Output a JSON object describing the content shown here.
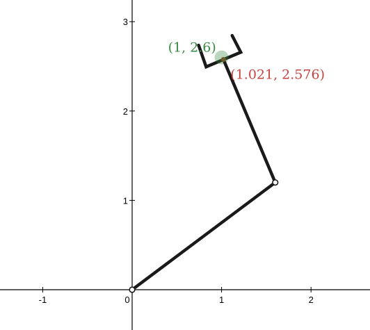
{
  "axes": {
    "x_ticks": [
      {
        "value": -1,
        "label": "-1"
      },
      {
        "value": 1,
        "label": "1"
      },
      {
        "value": 2,
        "label": "2"
      }
    ],
    "y_ticks": [
      {
        "value": 1,
        "label": "1"
      },
      {
        "value": 2,
        "label": "2"
      },
      {
        "value": 3,
        "label": "3"
      }
    ],
    "origin_label": "0",
    "axis_color": "#000000"
  },
  "arm": {
    "base": {
      "x": 0,
      "y": 0
    },
    "elbow": {
      "x": 1.6,
      "y": 1.2
    },
    "wrist": {
      "x": 1.021,
      "y": 2.576
    },
    "color": "#1a1a1a"
  },
  "target": {
    "x": 1,
    "y": 2.6,
    "label": "(1, 2.6)",
    "color": "#388c46"
  },
  "wrist_label": {
    "text": "(1.021, 2.576)",
    "color": "#c74440"
  }
}
